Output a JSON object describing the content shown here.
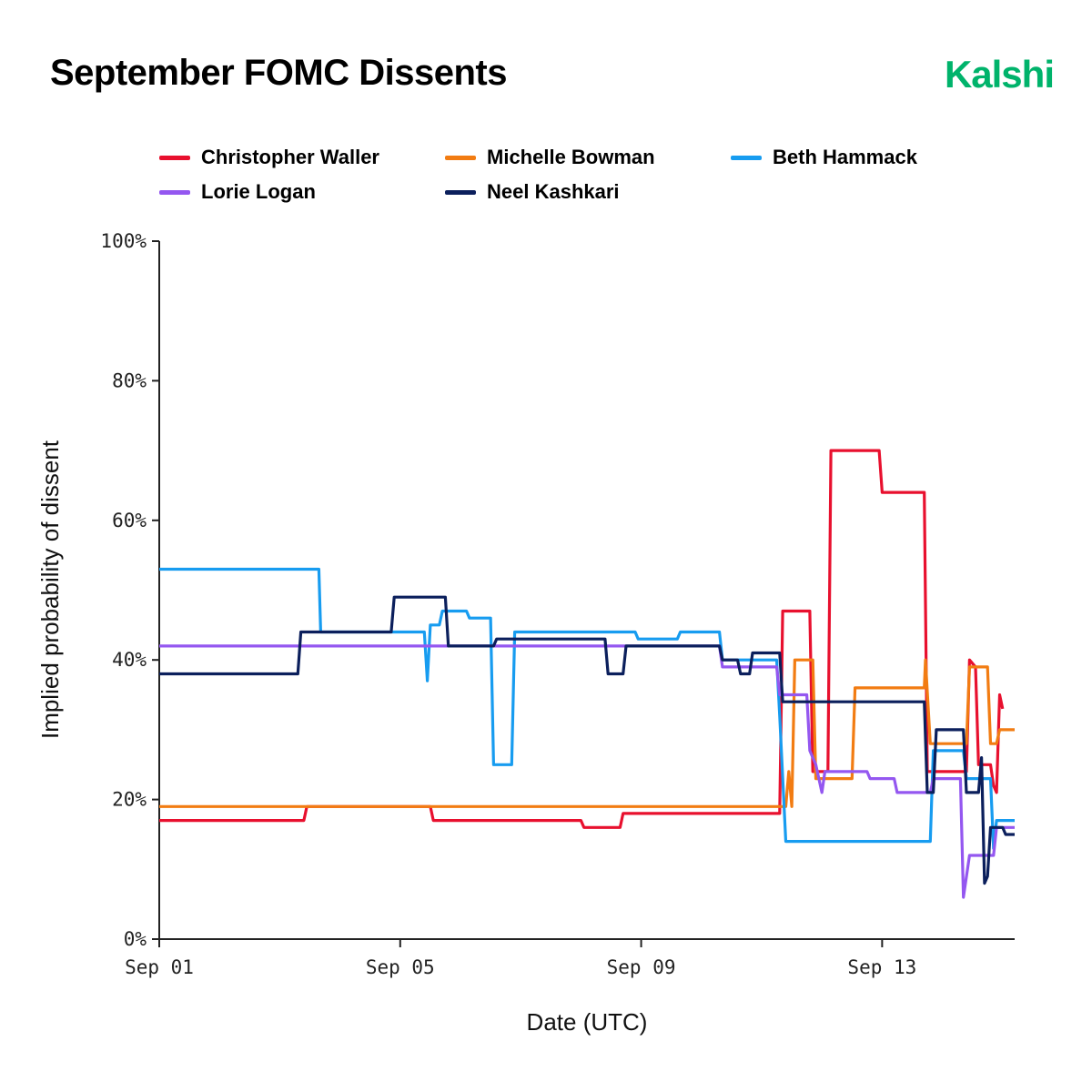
{
  "header": {
    "title": "September FOMC Dissents",
    "brand": "Kalshi"
  },
  "colors": {
    "brand": "#00b36b",
    "axis": "#222222"
  },
  "chart_data": {
    "type": "line",
    "title": "September FOMC Dissents",
    "xlabel": "Date (UTC)",
    "ylabel": "Implied probability of dissent",
    "ylim": [
      0,
      100
    ],
    "xlim": [
      0,
      14.2
    ],
    "x_units": "days since Sep 01 (UTC)",
    "y_ticks": [
      {
        "v": 0,
        "label": "0%"
      },
      {
        "v": 20,
        "label": "20%"
      },
      {
        "v": 40,
        "label": "40%"
      },
      {
        "v": 60,
        "label": "60%"
      },
      {
        "v": 80,
        "label": "80%"
      },
      {
        "v": 100,
        "label": "100%"
      }
    ],
    "x_ticks": [
      {
        "v": 0,
        "label": "Sep 01"
      },
      {
        "v": 4,
        "label": "Sep 05"
      },
      {
        "v": 8,
        "label": "Sep 09"
      },
      {
        "v": 12,
        "label": "Sep 13"
      }
    ],
    "legend_position": "top",
    "series": [
      {
        "name": "Christopher Waller",
        "color": "#e8102e",
        "points": [
          [
            0,
            17
          ],
          [
            2.4,
            17
          ],
          [
            2.45,
            19
          ],
          [
            4.5,
            19
          ],
          [
            4.55,
            17
          ],
          [
            7,
            17
          ],
          [
            7.05,
            16
          ],
          [
            7.65,
            16
          ],
          [
            7.7,
            18
          ],
          [
            10.3,
            18
          ],
          [
            10.35,
            47
          ],
          [
            10.8,
            47
          ],
          [
            10.85,
            24
          ],
          [
            11.1,
            24
          ],
          [
            11.15,
            70
          ],
          [
            11.95,
            70
          ],
          [
            12,
            64
          ],
          [
            12.7,
            64
          ],
          [
            12.75,
            24
          ],
          [
            13.4,
            24
          ],
          [
            13.45,
            40
          ],
          [
            13.55,
            39
          ],
          [
            13.6,
            25
          ],
          [
            13.8,
            25
          ],
          [
            13.85,
            22
          ],
          [
            13.9,
            21
          ],
          [
            13.95,
            35
          ],
          [
            14.0,
            33
          ]
        ]
      },
      {
        "name": "Michelle Bowman",
        "color": "#f27c12",
        "points": [
          [
            0,
            19
          ],
          [
            10.4,
            19
          ],
          [
            10.45,
            24
          ],
          [
            10.5,
            19
          ],
          [
            10.55,
            40
          ],
          [
            10.85,
            40
          ],
          [
            10.9,
            23
          ],
          [
            11.5,
            23
          ],
          [
            11.55,
            36
          ],
          [
            12.7,
            36
          ],
          [
            12.72,
            40
          ],
          [
            12.8,
            28
          ],
          [
            13.4,
            28
          ],
          [
            13.45,
            39
          ],
          [
            13.75,
            39
          ],
          [
            13.8,
            28
          ],
          [
            13.9,
            28
          ],
          [
            13.95,
            30
          ],
          [
            14.2,
            30
          ]
        ]
      },
      {
        "name": "Beth Hammack",
        "color": "#179cf0",
        "points": [
          [
            0,
            53
          ],
          [
            2.65,
            53
          ],
          [
            2.68,
            44
          ],
          [
            4.4,
            44
          ],
          [
            4.45,
            37
          ],
          [
            4.5,
            45
          ],
          [
            4.65,
            45
          ],
          [
            4.7,
            47
          ],
          [
            5.1,
            47
          ],
          [
            5.15,
            46
          ],
          [
            5.5,
            46
          ],
          [
            5.55,
            25
          ],
          [
            5.85,
            25
          ],
          [
            5.9,
            44
          ],
          [
            7.9,
            44
          ],
          [
            7.95,
            43
          ],
          [
            8.6,
            43
          ],
          [
            8.65,
            44
          ],
          [
            9.3,
            44
          ],
          [
            9.35,
            40
          ],
          [
            10.25,
            40
          ],
          [
            10.3,
            32
          ],
          [
            10.4,
            14
          ],
          [
            12.8,
            14
          ],
          [
            12.85,
            27
          ],
          [
            13.35,
            27
          ],
          [
            13.4,
            23
          ],
          [
            13.8,
            23
          ],
          [
            13.85,
            13
          ],
          [
            13.9,
            17
          ],
          [
            14.2,
            17
          ]
        ]
      },
      {
        "name": "Lorie Logan",
        "color": "#9457f0",
        "points": [
          [
            0,
            42
          ],
          [
            9.3,
            42
          ],
          [
            9.35,
            39
          ],
          [
            10.25,
            39
          ],
          [
            10.3,
            35
          ],
          [
            10.75,
            35
          ],
          [
            10.8,
            27
          ],
          [
            10.9,
            25
          ],
          [
            11.0,
            21
          ],
          [
            11.05,
            24
          ],
          [
            11.75,
            24
          ],
          [
            11.8,
            23
          ],
          [
            12.2,
            23
          ],
          [
            12.25,
            21
          ],
          [
            12.8,
            21
          ],
          [
            12.85,
            23
          ],
          [
            13.3,
            23
          ],
          [
            13.35,
            6
          ],
          [
            13.45,
            12
          ],
          [
            13.85,
            12
          ],
          [
            13.9,
            16
          ],
          [
            14.2,
            16
          ]
        ]
      },
      {
        "name": "Neel Kashkari",
        "color": "#0b1f5c",
        "points": [
          [
            0,
            38
          ],
          [
            2.3,
            38
          ],
          [
            2.35,
            44
          ],
          [
            3.85,
            44
          ],
          [
            3.9,
            49
          ],
          [
            4.75,
            49
          ],
          [
            4.8,
            42
          ],
          [
            5.55,
            42
          ],
          [
            5.6,
            43
          ],
          [
            7.4,
            43
          ],
          [
            7.45,
            38
          ],
          [
            7.7,
            38
          ],
          [
            7.75,
            42
          ],
          [
            9.3,
            42
          ],
          [
            9.35,
            40
          ],
          [
            9.6,
            40
          ],
          [
            9.65,
            38
          ],
          [
            9.8,
            38
          ],
          [
            9.85,
            41
          ],
          [
            10.3,
            41
          ],
          [
            10.35,
            34
          ],
          [
            12.7,
            34
          ],
          [
            12.75,
            21
          ],
          [
            12.85,
            21
          ],
          [
            12.9,
            30
          ],
          [
            13.35,
            30
          ],
          [
            13.4,
            21
          ],
          [
            13.6,
            21
          ],
          [
            13.65,
            26
          ],
          [
            13.7,
            8
          ],
          [
            13.75,
            9
          ],
          [
            13.8,
            16
          ],
          [
            14.0,
            16
          ],
          [
            14.05,
            15
          ],
          [
            14.2,
            15
          ]
        ]
      }
    ]
  }
}
